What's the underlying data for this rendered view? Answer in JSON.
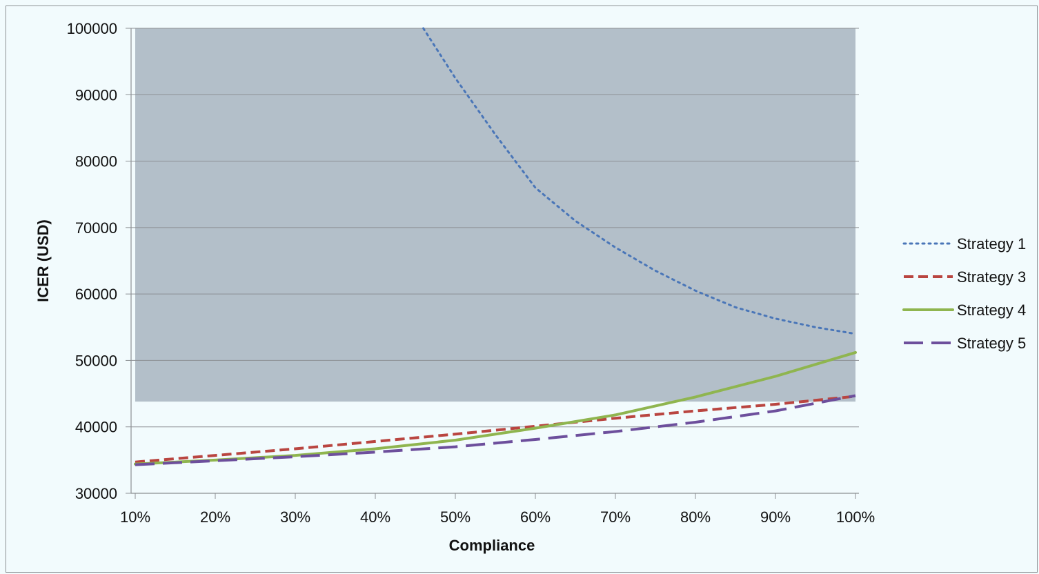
{
  "chart_data": {
    "type": "line",
    "xlabel": "Compliance",
    "ylabel": "ICER (USD)",
    "x": [
      0.1,
      0.2,
      0.3,
      0.4,
      0.5,
      0.6,
      0.7,
      0.8,
      0.9,
      1.0
    ],
    "x_tick_labels": [
      "10%",
      "20%",
      "30%",
      "40%",
      "50%",
      "60%",
      "70%",
      "80%",
      "90%",
      "100%"
    ],
    "ylim": [
      30000,
      100000
    ],
    "y_ticks": [
      30000,
      40000,
      50000,
      60000,
      70000,
      80000,
      90000,
      100000
    ],
    "grid": true,
    "legend_position": "right",
    "shaded_region": {
      "y_from": 43800,
      "y_to": 100000,
      "color": "#b3bfc9"
    },
    "series": [
      {
        "name": "Strategy 1",
        "style": "dotted",
        "color": "#4a76b8",
        "x": [
          0.46,
          0.5,
          0.55,
          0.6,
          0.65,
          0.7,
          0.75,
          0.8,
          0.85,
          0.9,
          0.95,
          1.0
        ],
        "values": [
          100000,
          92500,
          84000,
          76000,
          71000,
          67000,
          63500,
          60500,
          58000,
          56300,
          55000,
          54000
        ]
      },
      {
        "name": "Strategy 3",
        "style": "dashed",
        "color": "#b94540",
        "x": [
          0.1,
          0.2,
          0.3,
          0.4,
          0.5,
          0.6,
          0.7,
          0.8,
          0.9,
          1.0
        ],
        "values": [
          34700,
          35700,
          36700,
          37800,
          38900,
          40100,
          41300,
          42400,
          43400,
          44600
        ]
      },
      {
        "name": "Strategy 4",
        "style": "solid",
        "color": "#8fb54f",
        "x": [
          0.1,
          0.2,
          0.3,
          0.4,
          0.5,
          0.6,
          0.7,
          0.8,
          0.9,
          1.0
        ],
        "values": [
          34400,
          35000,
          35700,
          36700,
          38000,
          39800,
          41800,
          44500,
          47600,
          51200
        ]
      },
      {
        "name": "Strategy 5",
        "style": "long-dashed",
        "color": "#6d4f9c",
        "x": [
          0.1,
          0.2,
          0.3,
          0.4,
          0.5,
          0.6,
          0.7,
          0.8,
          0.9,
          1.0
        ],
        "values": [
          34300,
          34900,
          35500,
          36200,
          37000,
          38100,
          39300,
          40700,
          42400,
          44700
        ]
      }
    ]
  }
}
